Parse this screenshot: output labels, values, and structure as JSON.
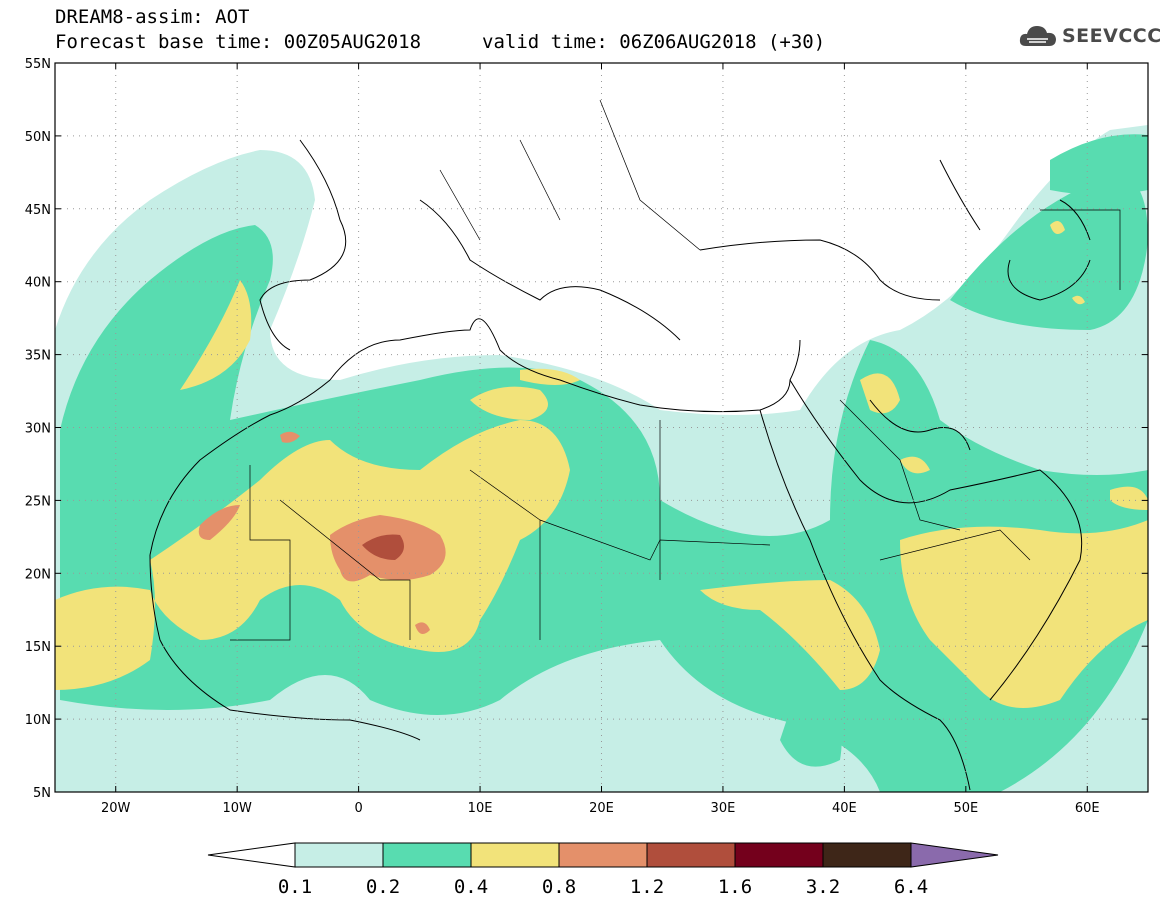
{
  "header": {
    "title_line1": "DREAM8-assim: AOT",
    "title_line2": "Forecast base time: 00Z05AUG2018",
    "valid_time": "valid time: 06Z06AUG2018 (+30)"
  },
  "logo": {
    "text": "SEEVCCC",
    "icon": "cloud-icon"
  },
  "map": {
    "lon_range": [
      -25,
      65
    ],
    "lat_range": [
      5,
      55
    ],
    "lat_ticks": [
      {
        "value": 5,
        "label": "5N"
      },
      {
        "value": 10,
        "label": "10N"
      },
      {
        "value": 15,
        "label": "15N"
      },
      {
        "value": 20,
        "label": "20N"
      },
      {
        "value": 25,
        "label": "25N"
      },
      {
        "value": 30,
        "label": "30N"
      },
      {
        "value": 35,
        "label": "35N"
      },
      {
        "value": 40,
        "label": "40N"
      },
      {
        "value": 45,
        "label": "45N"
      },
      {
        "value": 50,
        "label": "50N"
      },
      {
        "value": 55,
        "label": "55N"
      }
    ],
    "lon_ticks": [
      {
        "value": -20,
        "label": "20W"
      },
      {
        "value": -10,
        "label": "10W"
      },
      {
        "value": 0,
        "label": "0"
      },
      {
        "value": 10,
        "label": "10E"
      },
      {
        "value": 20,
        "label": "20E"
      },
      {
        "value": 30,
        "label": "30E"
      },
      {
        "value": 40,
        "label": "40E"
      },
      {
        "value": 50,
        "label": "50E"
      },
      {
        "value": 60,
        "label": "60E"
      }
    ],
    "grid": "dotted"
  },
  "legend": {
    "labels": [
      "0.1",
      "0.2",
      "0.4",
      "0.8",
      "1.2",
      "1.6",
      "3.2",
      "6.4"
    ],
    "colors": [
      "#c6eee6",
      "#58dcb0",
      "#f2e37a",
      "#e4906a",
      "#b04e3c",
      "#74001c",
      "#3e2618",
      "#8a6aac"
    ],
    "below_color": "#ffffff"
  }
}
